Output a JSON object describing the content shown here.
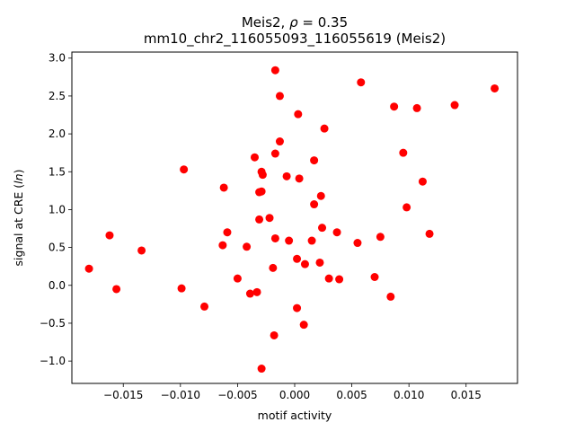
{
  "chart_data": {
    "type": "scatter",
    "title_line1_prefix": "Meis2, ",
    "title_line1_rho": "ρ",
    "title_line1_suffix": " = 0.35",
    "title_line2": "mm10_chr2_116055093_116055619 (Meis2)",
    "xlabel": "motif activity",
    "ylabel_prefix": "signal at CRE (",
    "ylabel_italic": "ln",
    "ylabel_suffix": ")",
    "xlim": [
      -0.0195,
      0.0195
    ],
    "ylim": [
      -1.295,
      3.08
    ],
    "grid": false,
    "legend": "none",
    "marker_color": "#ff0000",
    "xticks": [
      -0.015,
      -0.01,
      -0.005,
      0.0,
      0.005,
      0.01,
      0.015
    ],
    "xtick_labels": [
      "−0.015",
      "−0.010",
      "−0.005",
      "0.000",
      "0.005",
      "0.010",
      "0.015"
    ],
    "yticks": [
      -1.0,
      -0.5,
      0.0,
      0.5,
      1.0,
      1.5,
      2.0,
      2.5,
      3.0
    ],
    "ytick_labels": [
      "−1.0",
      "−0.5",
      "0.0",
      "0.5",
      "1.0",
      "1.5",
      "2.0",
      "2.5",
      "3.0"
    ],
    "points": [
      {
        "x": -0.018,
        "y": 0.22
      },
      {
        "x": -0.0162,
        "y": 0.66
      },
      {
        "x": -0.0156,
        "y": -0.05
      },
      {
        "x": -0.0134,
        "y": 0.46
      },
      {
        "x": -0.0099,
        "y": -0.04
      },
      {
        "x": -0.0097,
        "y": 1.53
      },
      {
        "x": -0.0079,
        "y": -0.28
      },
      {
        "x": -0.0063,
        "y": 0.53
      },
      {
        "x": -0.0062,
        "y": 1.29
      },
      {
        "x": -0.0059,
        "y": 0.7
      },
      {
        "x": -0.005,
        "y": 0.09
      },
      {
        "x": -0.0042,
        "y": 0.51
      },
      {
        "x": -0.0039,
        "y": -0.11
      },
      {
        "x": -0.0035,
        "y": 1.69
      },
      {
        "x": -0.0033,
        "y": -0.09
      },
      {
        "x": -0.0031,
        "y": 0.87
      },
      {
        "x": -0.0031,
        "y": 1.23
      },
      {
        "x": -0.0029,
        "y": 1.24
      },
      {
        "x": -0.0029,
        "y": 1.5
      },
      {
        "x": -0.0028,
        "y": 1.46
      },
      {
        "x": -0.0029,
        "y": -1.1
      },
      {
        "x": -0.0022,
        "y": 0.89
      },
      {
        "x": -0.0019,
        "y": 0.23
      },
      {
        "x": -0.0018,
        "y": -0.66
      },
      {
        "x": -0.0017,
        "y": 0.62
      },
      {
        "x": -0.0017,
        "y": 1.74
      },
      {
        "x": -0.0017,
        "y": 2.84
      },
      {
        "x": -0.0013,
        "y": 2.5
      },
      {
        "x": -0.0013,
        "y": 1.9
      },
      {
        "x": -0.0007,
        "y": 1.44
      },
      {
        "x": -0.0005,
        "y": 0.59
      },
      {
        "x": 0.0002,
        "y": 0.35
      },
      {
        "x": 0.0002,
        "y": -0.3
      },
      {
        "x": 0.0003,
        "y": 2.26
      },
      {
        "x": 0.0004,
        "y": 1.41
      },
      {
        "x": 0.0008,
        "y": -0.52
      },
      {
        "x": 0.0009,
        "y": 0.28
      },
      {
        "x": 0.0015,
        "y": 0.59
      },
      {
        "x": 0.0017,
        "y": 1.07
      },
      {
        "x": 0.0017,
        "y": 1.65
      },
      {
        "x": 0.0022,
        "y": 0.3
      },
      {
        "x": 0.0023,
        "y": 1.18
      },
      {
        "x": 0.0024,
        "y": 0.76
      },
      {
        "x": 0.0026,
        "y": 2.07
      },
      {
        "x": 0.003,
        "y": 0.09
      },
      {
        "x": 0.0037,
        "y": 0.7
      },
      {
        "x": 0.0039,
        "y": 0.08
      },
      {
        "x": 0.0055,
        "y": 0.56
      },
      {
        "x": 0.0058,
        "y": 2.68
      },
      {
        "x": 0.007,
        "y": 0.11
      },
      {
        "x": 0.0075,
        "y": 0.64
      },
      {
        "x": 0.0084,
        "y": -0.15
      },
      {
        "x": 0.0087,
        "y": 2.36
      },
      {
        "x": 0.0095,
        "y": 1.75
      },
      {
        "x": 0.0098,
        "y": 1.03
      },
      {
        "x": 0.0107,
        "y": 2.34
      },
      {
        "x": 0.0112,
        "y": 1.37
      },
      {
        "x": 0.0118,
        "y": 0.68
      },
      {
        "x": 0.014,
        "y": 2.38
      },
      {
        "x": 0.0175,
        "y": 2.6
      }
    ]
  }
}
